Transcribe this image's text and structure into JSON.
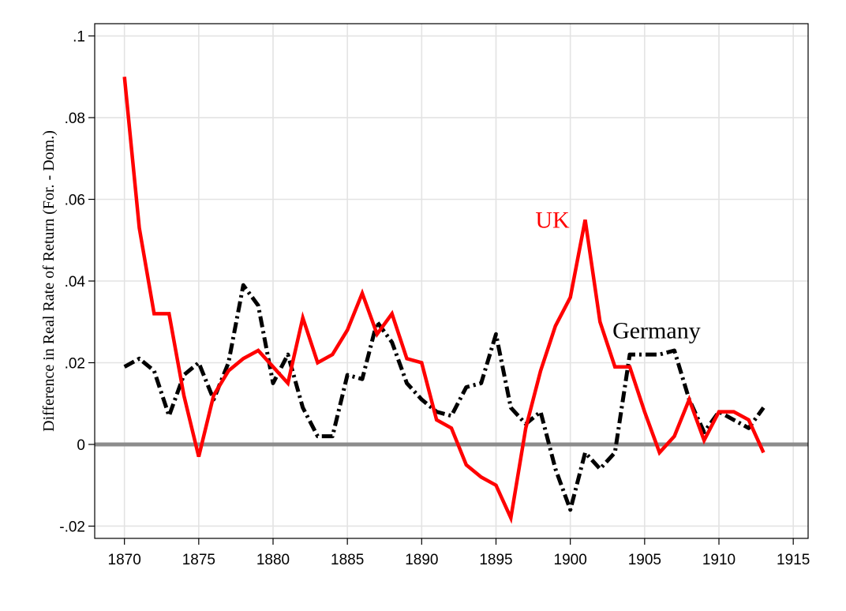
{
  "chart_data": {
    "type": "line",
    "title": "",
    "xlabel": "",
    "ylabel": "Difference in Real Rate of Return (For. - Dom.)",
    "xlim": [
      1868,
      1916
    ],
    "ylim": [
      -0.023,
      0.103
    ],
    "xticks": [
      1870,
      1875,
      1880,
      1885,
      1890,
      1895,
      1900,
      1905,
      1910,
      1915
    ],
    "xtick_labels": [
      "1870",
      "1875",
      "1880",
      "1885",
      "1890",
      "1895",
      "1900",
      "1905",
      "1910",
      "1915"
    ],
    "yticks": [
      -0.02,
      0,
      0.02,
      0.04,
      0.06,
      0.08,
      0.1
    ],
    "ytick_labels": [
      "-.02",
      "0",
      ".02",
      ".04",
      ".06",
      ".08",
      ".1"
    ],
    "grid": true,
    "reference_line": 0,
    "series": [
      {
        "name": "UK",
        "color": "#ff0000",
        "style": "solid",
        "x": [
          1870,
          1871,
          1872,
          1873,
          1874,
          1875,
          1876,
          1877,
          1878,
          1879,
          1880,
          1881,
          1882,
          1883,
          1884,
          1885,
          1886,
          1887,
          1888,
          1889,
          1890,
          1891,
          1892,
          1893,
          1894,
          1895,
          1896,
          1897,
          1898,
          1899,
          1900,
          1901,
          1902,
          1903,
          1904,
          1905,
          1906,
          1907,
          1908,
          1909,
          1910,
          1911,
          1912,
          1913
        ],
        "values": [
          0.09,
          0.053,
          0.032,
          0.032,
          0.012,
          -0.003,
          0.012,
          0.018,
          0.021,
          0.023,
          0.019,
          0.015,
          0.031,
          0.02,
          0.022,
          0.028,
          0.037,
          0.027,
          0.032,
          0.021,
          0.02,
          0.006,
          0.004,
          -0.005,
          -0.008,
          -0.01,
          -0.018,
          0.004,
          0.018,
          0.029,
          0.036,
          0.055,
          0.03,
          0.019,
          0.019,
          0.008,
          -0.002,
          0.002,
          0.011,
          0.001,
          0.008,
          0.008,
          0.006,
          -0.002
        ]
      },
      {
        "name": "Germany",
        "color": "#000000",
        "style": "dash-dot",
        "x": [
          1870,
          1871,
          1872,
          1873,
          1874,
          1875,
          1876,
          1877,
          1878,
          1879,
          1880,
          1881,
          1882,
          1883,
          1884,
          1885,
          1886,
          1887,
          1888,
          1889,
          1890,
          1891,
          1892,
          1893,
          1894,
          1895,
          1896,
          1897,
          1898,
          1899,
          1900,
          1901,
          1902,
          1903,
          1904,
          1905,
          1906,
          1907,
          1908,
          1909,
          1910,
          1911,
          1912,
          1913
        ],
        "values": [
          0.019,
          0.021,
          0.018,
          0.007,
          0.017,
          0.02,
          0.011,
          0.02,
          0.039,
          0.034,
          0.015,
          0.022,
          0.009,
          0.002,
          0.002,
          0.017,
          0.016,
          0.03,
          0.025,
          0.015,
          0.011,
          0.008,
          0.007,
          0.014,
          0.015,
          0.027,
          0.009,
          0.005,
          0.008,
          -0.006,
          -0.016,
          -0.002,
          -0.006,
          -0.002,
          0.022,
          0.022,
          0.022,
          0.023,
          0.011,
          0.003,
          0.008,
          0.006,
          0.004,
          0.009
        ]
      }
    ],
    "annotations": [
      {
        "text": "UK",
        "series": "UK",
        "x": 1898.8,
        "y": 0.053,
        "color": "#ff0000"
      },
      {
        "text": "Germany",
        "series": "Germany",
        "x": 1905.8,
        "y": 0.026,
        "color": "#000000"
      }
    ]
  }
}
